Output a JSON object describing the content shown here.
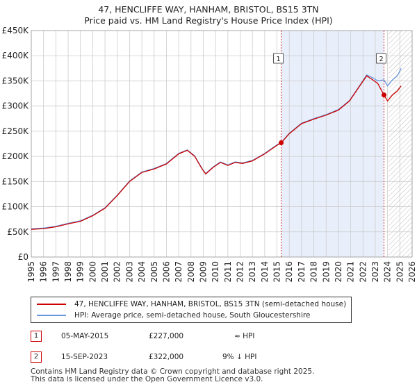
{
  "title_line1": "47, HENCLIFFE WAY, HANHAM, BRISTOL, BS15 3TN",
  "title_line2": "Price paid vs. HM Land Registry's House Price Index (HPI)",
  "colors": {
    "property": "#cc0000",
    "hpi": "#6699dd",
    "shade": "#e8eefa",
    "grid": "#cccccc"
  },
  "legend": {
    "property_label": "47, HENCLIFFE WAY, HANHAM, BRISTOL, BS15 3TN (semi-detached house)",
    "hpi_label": "HPI: Average price, semi-detached house, South Gloucestershire"
  },
  "sales": [
    {
      "num": "1",
      "date": "05-MAY-2015",
      "price": "£227,000",
      "rel": "≈ HPI"
    },
    {
      "num": "2",
      "date": "15-SEP-2023",
      "price": "£322,000",
      "rel": "9% ↓ HPI"
    }
  ],
  "footer_line1": "Contains HM Land Registry data © Crown copyright and database right 2025.",
  "footer_line2": "This data is licensed under the Open Government Licence v3.0.",
  "chart_data": {
    "type": "line",
    "xlim": [
      1995,
      2026
    ],
    "ylim": [
      0,
      450000
    ],
    "x_ticks": [
      "1995",
      "1996",
      "1997",
      "1998",
      "1999",
      "2000",
      "2001",
      "2002",
      "2003",
      "2004",
      "2005",
      "2006",
      "2007",
      "2008",
      "2009",
      "2010",
      "2011",
      "2012",
      "2013",
      "2014",
      "2015",
      "2016",
      "2017",
      "2018",
      "2019",
      "2020",
      "2021",
      "2022",
      "2023",
      "2024",
      "2025",
      "2026"
    ],
    "y_ticks": [
      {
        "v": 0,
        "label": "£0"
      },
      {
        "v": 50000,
        "label": "£50K"
      },
      {
        "v": 100000,
        "label": "£100K"
      },
      {
        "v": 150000,
        "label": "£150K"
      },
      {
        "v": 200000,
        "label": "£200K"
      },
      {
        "v": 250000,
        "label": "£250K"
      },
      {
        "v": 300000,
        "label": "£300K"
      },
      {
        "v": 350000,
        "label": "£350K"
      },
      {
        "v": 400000,
        "label": "£400K"
      },
      {
        "v": 450000,
        "label": "£450K"
      }
    ],
    "grid": true,
    "shaded_range": [
      2015.34,
      2023.71
    ],
    "future_hatch_from": 2024.1,
    "series": [
      {
        "name": "47, HENCLIFFE WAY, HANHAM, BRISTOL, BS15 3TN (semi-detached house)",
        "points": [
          [
            1995,
            55000
          ],
          [
            1996,
            56500
          ],
          [
            1997,
            60000
          ],
          [
            1998,
            66000
          ],
          [
            1999,
            71000
          ],
          [
            2000,
            82000
          ],
          [
            2001,
            97000
          ],
          [
            2002,
            122000
          ],
          [
            2003,
            150000
          ],
          [
            2004,
            168000
          ],
          [
            2005,
            175000
          ],
          [
            2006,
            185000
          ],
          [
            2007,
            205000
          ],
          [
            2007.7,
            212000
          ],
          [
            2008.3,
            200000
          ],
          [
            2008.9,
            175000
          ],
          [
            2009.2,
            165000
          ],
          [
            2009.8,
            178000
          ],
          [
            2010.4,
            188000
          ],
          [
            2011,
            182000
          ],
          [
            2011.6,
            188000
          ],
          [
            2012.2,
            186000
          ],
          [
            2013,
            191000
          ],
          [
            2014,
            205000
          ],
          [
            2015,
            222000
          ],
          [
            2015.34,
            227000
          ],
          [
            2016,
            245000
          ],
          [
            2017,
            265000
          ],
          [
            2018,
            274000
          ],
          [
            2019,
            282000
          ],
          [
            2020,
            292000
          ],
          [
            2020.9,
            310000
          ],
          [
            2021.6,
            335000
          ],
          [
            2022.3,
            360000
          ],
          [
            2022.8,
            352000
          ],
          [
            2023.2,
            345000
          ],
          [
            2023.71,
            322000
          ],
          [
            2024.0,
            310000
          ],
          [
            2024.4,
            322000
          ],
          [
            2024.8,
            330000
          ],
          [
            2025.1,
            340000
          ]
        ]
      },
      {
        "name": "HPI: Average price, semi-detached house, South Gloucestershire",
        "points": [
          [
            1995,
            56000
          ],
          [
            1996,
            57500
          ],
          [
            1997,
            61000
          ],
          [
            1998,
            67000
          ],
          [
            1999,
            72000
          ],
          [
            2000,
            83000
          ],
          [
            2001,
            98000
          ],
          [
            2002,
            123000
          ],
          [
            2003,
            151000
          ],
          [
            2004,
            169000
          ],
          [
            2005,
            176000
          ],
          [
            2006,
            186000
          ],
          [
            2007,
            206000
          ],
          [
            2007.7,
            213000
          ],
          [
            2008.3,
            201000
          ],
          [
            2008.9,
            176000
          ],
          [
            2009.2,
            166000
          ],
          [
            2009.8,
            179000
          ],
          [
            2010.4,
            189000
          ],
          [
            2011,
            183000
          ],
          [
            2011.6,
            189000
          ],
          [
            2012.2,
            187000
          ],
          [
            2013,
            192000
          ],
          [
            2014,
            206000
          ],
          [
            2015,
            223000
          ],
          [
            2015.34,
            227500
          ],
          [
            2016,
            246000
          ],
          [
            2017,
            266000
          ],
          [
            2018,
            275000
          ],
          [
            2019,
            283000
          ],
          [
            2020,
            293000
          ],
          [
            2020.9,
            311000
          ],
          [
            2021.6,
            336000
          ],
          [
            2022.3,
            362000
          ],
          [
            2022.8,
            356000
          ],
          [
            2023.2,
            350000
          ],
          [
            2023.71,
            352000
          ],
          [
            2024.0,
            340000
          ],
          [
            2024.4,
            352000
          ],
          [
            2024.8,
            360000
          ],
          [
            2025.1,
            375000
          ]
        ]
      }
    ],
    "markers": [
      {
        "label": "1",
        "x": 2015.34,
        "y": 227000
      },
      {
        "label": "2",
        "x": 2023.71,
        "y": 322000
      }
    ]
  }
}
